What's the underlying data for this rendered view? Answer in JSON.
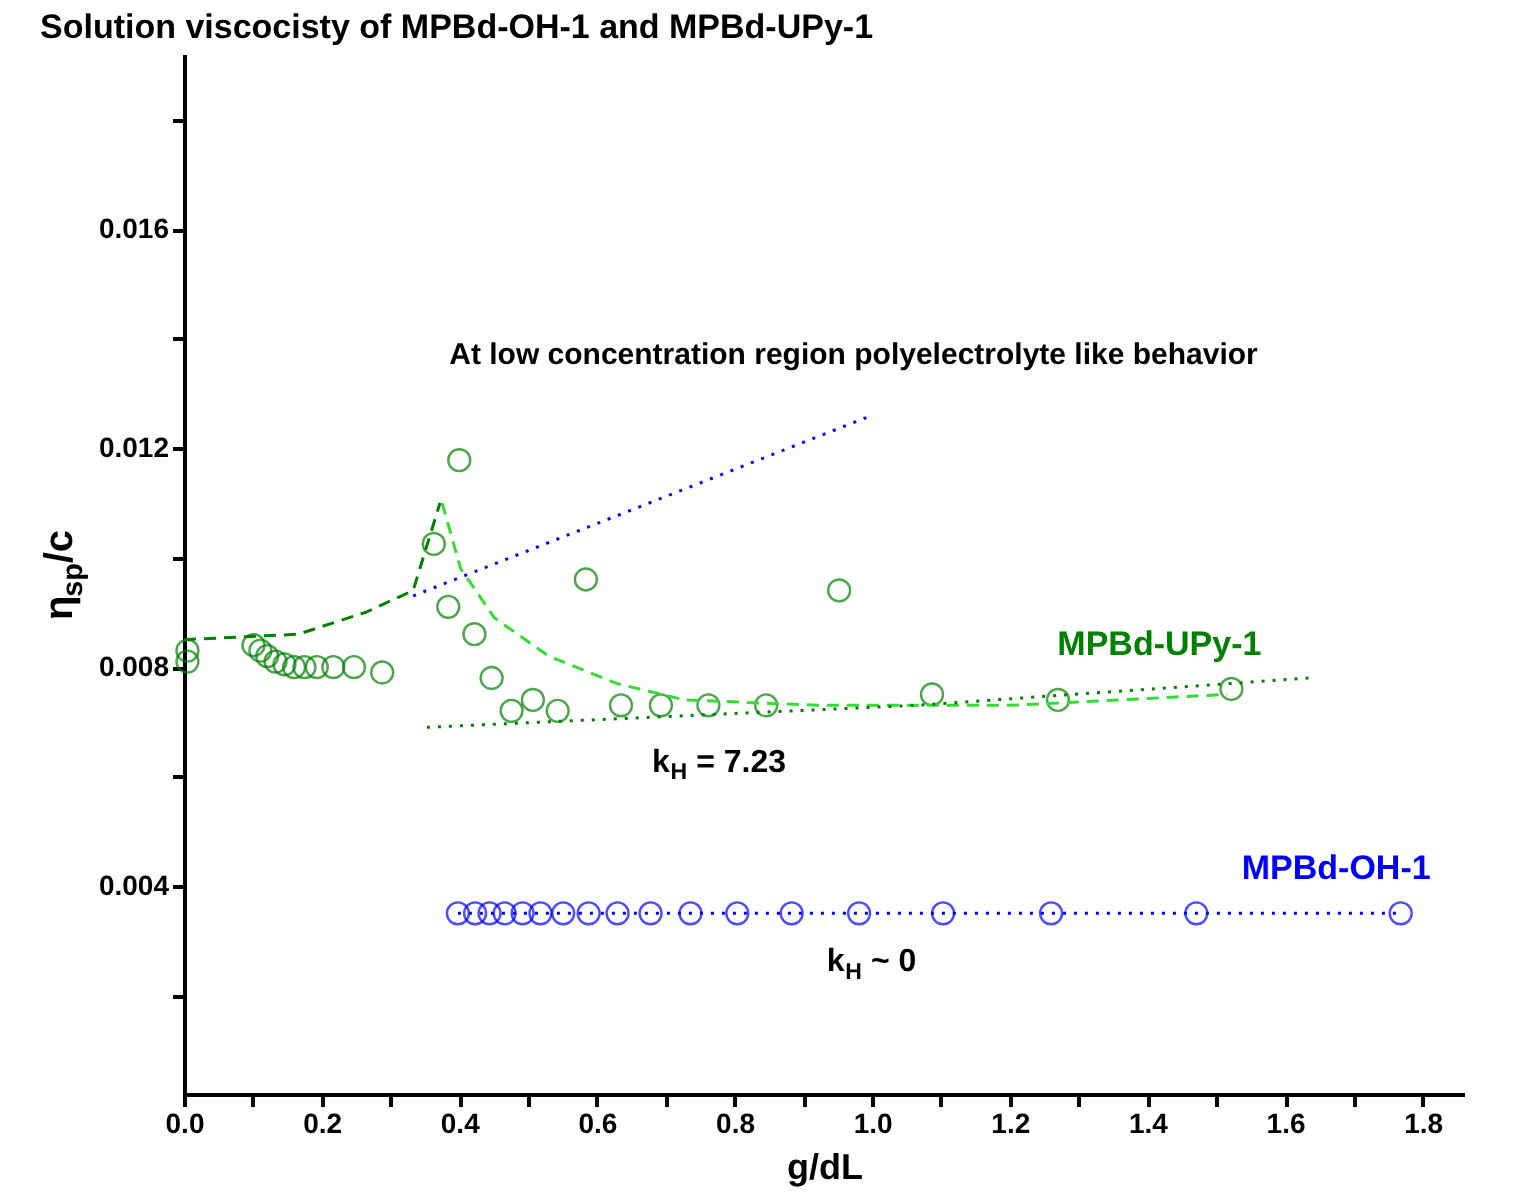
{
  "chart_data": {
    "type": "scatter",
    "title": "Solution viscocisty of  MPBd-OH-1 and MPBd-UPy-1",
    "xlabel": "g/dL",
    "ylabel": "η$_{sp}$/c",
    "xlim": [
      0,
      1.86
    ],
    "ylim": [
      0.0002,
      0.0192
    ],
    "xticks": [
      {
        "value": 0,
        "label": "0.0"
      },
      {
        "value": 0.1,
        "label": null
      },
      0.2,
      {
        "value": 0.3,
        "label": null
      },
      0.4,
      {
        "value": 0.5,
        "label": null
      },
      0.6,
      {
        "value": 0.7,
        "label": null
      },
      0.8,
      {
        "value": 0.9,
        "label": null
      },
      {
        "value": 1.0,
        "label": "1.0"
      },
      {
        "value": 1.1,
        "label": null
      },
      1.2,
      {
        "value": 1.3,
        "label": null
      },
      1.4,
      {
        "value": 1.5,
        "label": null
      },
      1.6,
      {
        "value": 1.7,
        "label": null
      },
      1.8
    ],
    "yticks": [
      {
        "value": 0.002,
        "label": null
      },
      0.004,
      {
        "value": 0.006,
        "label": null
      },
      0.008,
      {
        "value": 0.01,
        "label": null
      },
      0.012,
      {
        "value": 0.014,
        "label": null
      },
      0.016,
      {
        "value": 0.018,
        "label": null
      }
    ],
    "grid": false,
    "marker": "circle",
    "series": [
      {
        "name": "MPBd-UPy-1",
        "color": "#008000",
        "x": [
          0.005,
          0.005,
          0.101,
          0.111,
          0.121,
          0.133,
          0.146,
          0.16,
          0.175,
          0.193,
          0.217,
          0.247,
          0.288,
          0.363,
          0.4,
          0.384,
          0.422,
          0.447,
          0.476,
          0.507,
          0.543,
          0.584,
          0.635,
          0.693,
          0.762,
          0.846,
          0.952,
          1.087,
          1.27,
          1.522
        ],
        "values": [
          0.0083,
          0.0081,
          0.0084,
          0.0083,
          0.0082,
          0.0081,
          0.00805,
          0.008,
          0.008,
          0.008,
          0.008,
          0.008,
          0.0079,
          0.01025,
          0.01178,
          0.0091,
          0.0086,
          0.0078,
          0.0072,
          0.0074,
          0.0072,
          0.0096,
          0.0073,
          0.0073,
          0.0073,
          0.0073,
          0.0094,
          0.0075,
          0.0074,
          0.0076
        ]
      },
      {
        "name": "MPBd-OH-1",
        "color": "#0000ff",
        "x": [
          0.398,
          0.423,
          0.444,
          0.466,
          0.492,
          0.518,
          0.551,
          0.588,
          0.63,
          0.678,
          0.736,
          0.804,
          0.883,
          0.981,
          1.103,
          1.26,
          1.471,
          1.768
        ],
        "values": [
          0.0035,
          0.0035,
          0.0035,
          0.0035,
          0.0035,
          0.0035,
          0.0035,
          0.0035,
          0.0035,
          0.0035,
          0.0035,
          0.0035,
          0.0035,
          0.0035,
          0.0035,
          0.0035,
          0.0035,
          0.0035
        ]
      },
      {
        "type": "line",
        "color": "#0000ff",
        "line_style": "dotted",
        "marker": "none",
        "x": [
          0.398,
          1.768
        ],
        "values": [
          0.0035,
          0.0035
        ]
      },
      {
        "type": "line",
        "color": "#008000",
        "line_style": "dashed",
        "marker": "none",
        "x": [
          0,
          0.166,
          0.264,
          0.333,
          0.372
        ],
        "values": [
          0.0085,
          0.0086,
          0.009,
          0.0094,
          0.011
        ]
      },
      {
        "type": "line",
        "color": "#33dd33",
        "line_style": "dashed",
        "marker": "none",
        "x": [
          0.375,
          0.402,
          0.451,
          0.53,
          0.629,
          0.727,
          0.925,
          1.2,
          1.516
        ],
        "values": [
          0.011,
          0.0098,
          0.0089,
          0.0082,
          0.0077,
          0.0074,
          0.0073,
          0.0073,
          0.0075
        ]
      },
      {
        "type": "line",
        "color": "#008000",
        "line_style": "dotted",
        "marker": "none",
        "x": [
          0.353,
          1.063,
          1.635
        ],
        "values": [
          0.0069,
          0.0073,
          0.0078
        ]
      },
      {
        "type": "line",
        "color": "#0000ff",
        "line_style": "dotted",
        "marker": "none",
        "x": [
          0.333,
          1.0
        ],
        "values": [
          0.0093,
          0.0126
        ]
      }
    ],
    "annotations": [
      "At low concentration region polyelectrolyte like behavior",
      {
        "text": "k$_{H}$ = 7.23",
        "x": 0.78,
        "y": 0.00714
      },
      {
        "text": "k$_{H}$ ~ 0",
        "x": 1.0,
        "y": 0.0035
      }
    ]
  }
}
